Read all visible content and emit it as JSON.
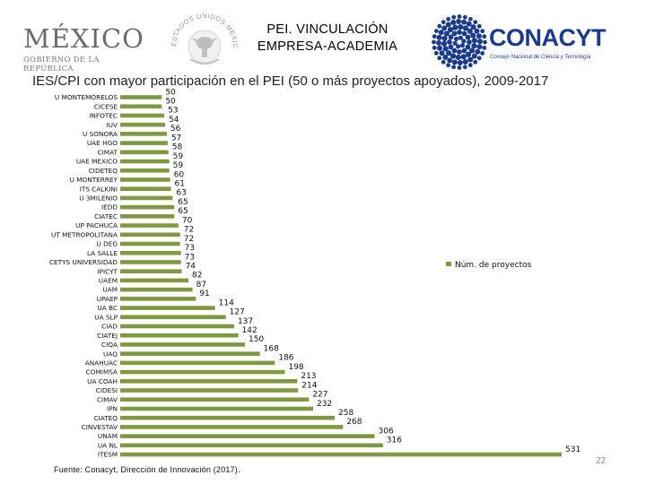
{
  "header": {
    "mexico_logo_word": "MÉXICO",
    "mexico_logo_sub": "GOBIERNO DE LA REPÚBLICA",
    "emblem_text": "ESTADOS UNIDOS MEXICANOS",
    "title_line1": "PEI. VINCULACIÓN",
    "title_line2": "EMPRESA-ACADEMIA",
    "conacyt_logo_word": "CONACYT",
    "conacyt_logo_sub": "Consejo Nacional de Ciencia y Tecnología"
  },
  "footer": {
    "source": "Fuente: Conacyt, Dirección de Innovación (2017).",
    "slide_number": "22"
  },
  "colors": {
    "bar": "#7f9842",
    "logo_blue": "#1a3b8a"
  },
  "chart_data": {
    "type": "bar",
    "orientation": "horizontal",
    "title": "IES/CPI con mayor participación en el PEI (50 o más proyectos apoyados), 2009-2017",
    "legend": {
      "label": "Núm. de proyectos",
      "placement": "right"
    },
    "categories": [
      "U MONTEMORELOS",
      "CICESE",
      "INFOTEC",
      "IUV",
      "U SONORA",
      "UAE HGO",
      "CIMAT",
      "UAE MEXICO",
      "CIDETEQ",
      "U MONTERREY",
      "ITS CALKINI",
      "U 3MILENIO",
      "IEDD",
      "CIATEC",
      "UP PACHUCA",
      "UT METROPOLITANA",
      "U DEG",
      "LA SALLE",
      "CETYS UNIVERSIDAD",
      "IPICYT",
      "UAEM",
      "UAM",
      "UPAEP",
      "UA BC",
      "UA SLP",
      "CIAD",
      "CIATEJ",
      "CIQA",
      "UAQ",
      "ANAHUAC",
      "COMIMSA",
      "UA COAH",
      "CIDESI",
      "CIMAV",
      "IPN",
      "CIATEQ",
      "CINVESTAV",
      "UNAM",
      "UA NL",
      "ITESM"
    ],
    "series": [
      {
        "name": "Núm. de proyectos",
        "values": [
          50,
          50,
          53,
          54,
          56,
          57,
          58,
          59,
          59,
          60,
          61,
          63,
          65,
          65,
          70,
          72,
          72,
          73,
          73,
          74,
          82,
          87,
          91,
          114,
          127,
          137,
          142,
          150,
          168,
          186,
          198,
          213,
          214,
          227,
          232,
          258,
          268,
          306,
          316,
          531
        ]
      }
    ],
    "data_labels": true,
    "grid": false
  }
}
